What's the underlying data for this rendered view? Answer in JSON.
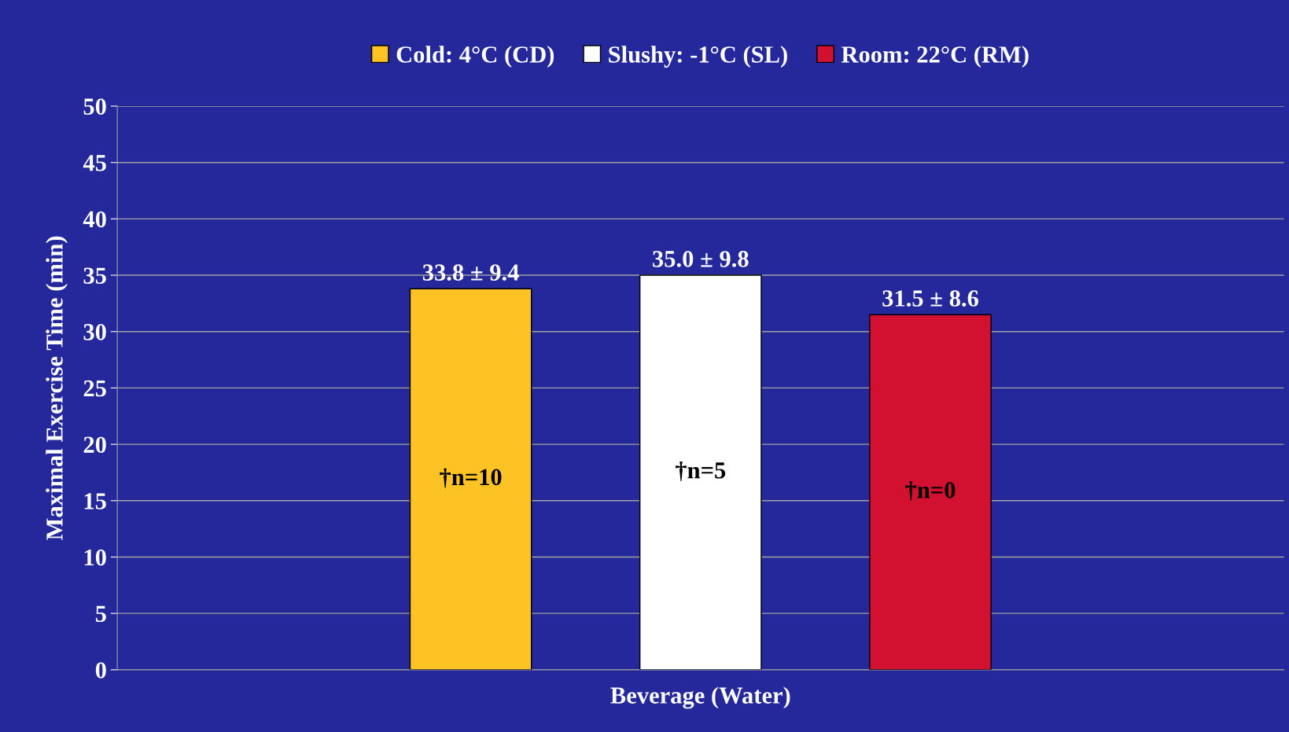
{
  "chart_data": {
    "type": "bar",
    "categories": [
      null
    ],
    "series": [
      {
        "name": "Cold: 4°C (CD)",
        "color": "#fdc325",
        "values": [
          33.8
        ],
        "value_labels": [
          "33.8 ± 9.4"
        ]
      },
      {
        "name": "Slushy: -1°C (SL)",
        "color": "#ffffff",
        "values": [
          35.0
        ],
        "value_labels": [
          "35.0 ± 9.8"
        ]
      },
      {
        "name": "Room: 22°C (RM)",
        "color": "#d21131",
        "values": [
          31.5
        ],
        "value_labels": [
          "31.5 ± 8.6"
        ]
      }
    ],
    "annotations": [
      "†n=10",
      "†n=5",
      "†n=0"
    ],
    "xlabel": "Beverage (Water)",
    "ylabel": "Maximal Exercise Time (min)",
    "ylim": [
      0,
      50
    ],
    "yticks": [
      0,
      5,
      10,
      15,
      20,
      25,
      30,
      35,
      40,
      45,
      50
    ],
    "grid": "y",
    "legend": "top"
  }
}
